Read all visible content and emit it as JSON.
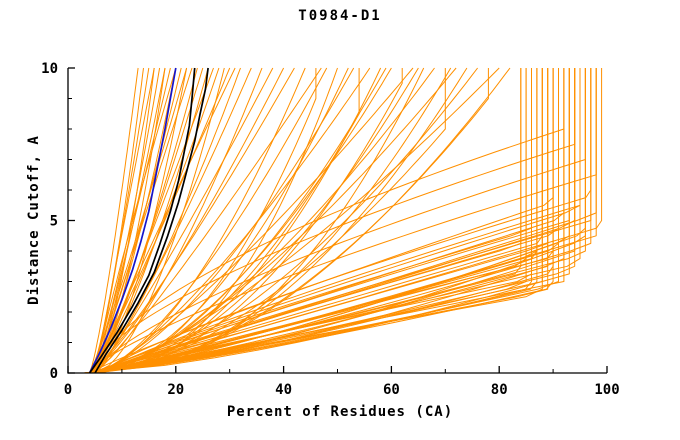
{
  "title": "T0984-D1",
  "chart_data": {
    "type": "line",
    "title": "T0984-D1",
    "xlabel": "Percent of Residues (CA)",
    "ylabel": "Distance Cutoff, A",
    "xlim": [
      0,
      100
    ],
    "ylim": [
      0,
      10
    ],
    "xticks": [
      0,
      20,
      40,
      60,
      80,
      100
    ],
    "xminor": [
      10,
      30,
      50,
      70,
      90
    ],
    "yticks": [
      0,
      5,
      10
    ],
    "yminor": [
      1,
      2,
      3,
      4,
      6,
      7,
      8,
      9
    ],
    "grid": false,
    "legend": "none",
    "colors": {
      "models": "#ff9000",
      "highlight": "#1515cc",
      "reference": "#000000"
    },
    "model_curves": {
      "description": "orange server/model GDT-style curves; each entry is [x_start, x_saturation, y_saturation, shape_exponent] with x = x_start + (x_sat - x_start) * min(1, y/y_sat)^shape",
      "params": [
        [
          4,
          99,
          4.8,
          0.95
        ],
        [
          4,
          98,
          4.5,
          0.9
        ],
        [
          5,
          98,
          5.2,
          1.0
        ],
        [
          4,
          97,
          4.2,
          0.85
        ],
        [
          5,
          97,
          5.0,
          1.05
        ],
        [
          4,
          96,
          3.9,
          0.9
        ],
        [
          5,
          96,
          4.6,
          0.8
        ],
        [
          4,
          95,
          3.6,
          0.95
        ],
        [
          5,
          95,
          5.4,
          1.1
        ],
        [
          4,
          94,
          3.4,
          0.85
        ],
        [
          5,
          94,
          4.9,
          1.0
        ],
        [
          4,
          93,
          3.2,
          0.9
        ],
        [
          5,
          93,
          4.4,
          0.8
        ],
        [
          4,
          92,
          3.0,
          0.95
        ],
        [
          5,
          92,
          5.1,
          1.05
        ],
        [
          4,
          91,
          2.9,
          0.85
        ],
        [
          5,
          91,
          4.1,
          0.9
        ],
        [
          4,
          90,
          2.8,
          0.8
        ],
        [
          5,
          90,
          3.8,
          1.0
        ],
        [
          4,
          90,
          5.6,
          1.1
        ],
        [
          4,
          89,
          2.7,
          0.9
        ],
        [
          5,
          89,
          3.5,
          0.85
        ],
        [
          4,
          88,
          2.6,
          0.95
        ],
        [
          5,
          88,
          4.3,
          1.0
        ],
        [
          4,
          87,
          2.8,
          0.8
        ],
        [
          5,
          87,
          3.9,
          0.9
        ],
        [
          4,
          86,
          3.1,
          1.0
        ],
        [
          5,
          86,
          4.7,
          1.1
        ],
        [
          4,
          85,
          2.9,
          0.85
        ],
        [
          5,
          85,
          3.6,
          0.95
        ],
        [
          4,
          84,
          3.3,
          0.9
        ],
        [
          5,
          84,
          4.2,
          1.05
        ],
        [
          3,
          96,
          4.4,
          0.7
        ],
        [
          3,
          94,
          4.0,
          0.75
        ],
        [
          3,
          92,
          3.7,
          0.7
        ],
        [
          3,
          90,
          3.3,
          0.75
        ],
        [
          3,
          88,
          3.0,
          0.7
        ],
        [
          3,
          86,
          2.8,
          0.75
        ],
        [
          6,
          97,
          5.8,
          1.2
        ],
        [
          6,
          95,
          5.5,
          1.15
        ],
        [
          6,
          93,
          5.0,
          1.1
        ],
        [
          6,
          91,
          4.6,
          1.05
        ],
        [
          6,
          89,
          4.2,
          1.0
        ],
        [
          6,
          87,
          3.8,
          0.95
        ],
        [
          4,
          98,
          6.5,
          1.3
        ],
        [
          5,
          96,
          7.0,
          1.4
        ],
        [
          4,
          94,
          7.5,
          1.5
        ],
        [
          5,
          92,
          8.0,
          1.6
        ],
        [
          4,
          13,
          10,
          0.8
        ],
        [
          4,
          14,
          10,
          0.7
        ],
        [
          5,
          15,
          10,
          0.9
        ],
        [
          4,
          16,
          10,
          0.6
        ],
        [
          5,
          16,
          10,
          1.0
        ],
        [
          4,
          17,
          10,
          0.75
        ],
        [
          5,
          18,
          10,
          0.85
        ],
        [
          4,
          18,
          10,
          0.6
        ],
        [
          5,
          19,
          10,
          0.95
        ],
        [
          4,
          20,
          10,
          0.7
        ],
        [
          5,
          20,
          10,
          1.1
        ],
        [
          4,
          21,
          10,
          0.8
        ],
        [
          5,
          22,
          10,
          0.65
        ],
        [
          4,
          22,
          10,
          0.9
        ],
        [
          5,
          23,
          10,
          1.0
        ],
        [
          4,
          24,
          10,
          0.75
        ],
        [
          5,
          25,
          10,
          0.85
        ],
        [
          4,
          26,
          10,
          0.7
        ],
        [
          5,
          27,
          10,
          0.95
        ],
        [
          4,
          28,
          10,
          0.8
        ],
        [
          5,
          29,
          10,
          0.6
        ],
        [
          4,
          30,
          10,
          0.9
        ],
        [
          5,
          31,
          10,
          1.05
        ],
        [
          4,
          32,
          10,
          0.75
        ],
        [
          5,
          34,
          10,
          0.85
        ],
        [
          4,
          36,
          10,
          0.7
        ],
        [
          5,
          38,
          10,
          0.9
        ],
        [
          4,
          40,
          10,
          0.8
        ],
        [
          4,
          44,
          10,
          0.6
        ],
        [
          5,
          48,
          10,
          0.7
        ],
        [
          4,
          52,
          10,
          0.55
        ],
        [
          5,
          56,
          10,
          0.75
        ],
        [
          4,
          60,
          10,
          0.6
        ],
        [
          5,
          64,
          10,
          0.8
        ],
        [
          4,
          68,
          10,
          0.65
        ],
        [
          5,
          72,
          10,
          0.7
        ],
        [
          4,
          76,
          10,
          0.6
        ],
        [
          5,
          80,
          10,
          0.75
        ],
        [
          4,
          46,
          9,
          0.5
        ],
        [
          5,
          54,
          8.5,
          0.55
        ],
        [
          4,
          62,
          9.5,
          0.5
        ],
        [
          5,
          70,
          8,
          0.6
        ],
        [
          4,
          78,
          9,
          0.55
        ],
        [
          5,
          50,
          10,
          0.45
        ],
        [
          4,
          58,
          10,
          0.5
        ],
        [
          5,
          66,
          10,
          0.45
        ],
        [
          4,
          74,
          10,
          0.5
        ],
        [
          5,
          82,
          10,
          0.55
        ],
        [
          4,
          42,
          10,
          0.85
        ],
        [
          5,
          47,
          10,
          0.9
        ],
        [
          4,
          53,
          10,
          0.65
        ],
        [
          5,
          59,
          10,
          0.6
        ],
        [
          4,
          65,
          10,
          0.55
        ],
        [
          5,
          71,
          10,
          0.5
        ]
      ]
    },
    "highlight_curve": {
      "color": "#1515cc",
      "points": [
        [
          4,
          0
        ],
        [
          6,
          0.7
        ],
        [
          8,
          1.5
        ],
        [
          10,
          2.4
        ],
        [
          12,
          3.4
        ],
        [
          13.5,
          4.3
        ],
        [
          15,
          5.3
        ],
        [
          16,
          6.2
        ],
        [
          17,
          7.1
        ],
        [
          18,
          8.0
        ],
        [
          19,
          9.0
        ],
        [
          20,
          10
        ]
      ]
    },
    "reference_curves": [
      {
        "color": "#000000",
        "points": [
          [
            4,
            0
          ],
          [
            6,
            0.5
          ],
          [
            9,
            1.3
          ],
          [
            12,
            2.2
          ],
          [
            15,
            3.2
          ],
          [
            17,
            4.2
          ],
          [
            19,
            5.3
          ],
          [
            20.5,
            6.3
          ],
          [
            21.5,
            7.2
          ],
          [
            22.5,
            8.1
          ],
          [
            23,
            9.0
          ],
          [
            23.5,
            10
          ]
        ]
      },
      {
        "color": "#000000",
        "points": [
          [
            5,
            0
          ],
          [
            7,
            0.6
          ],
          [
            10,
            1.4
          ],
          [
            13,
            2.3
          ],
          [
            16,
            3.3
          ],
          [
            18.5,
            4.5
          ],
          [
            20.5,
            5.6
          ],
          [
            22,
            6.6
          ],
          [
            23.5,
            7.6
          ],
          [
            24.5,
            8.5
          ],
          [
            25.5,
            9.3
          ],
          [
            26,
            10
          ]
        ]
      }
    ]
  }
}
